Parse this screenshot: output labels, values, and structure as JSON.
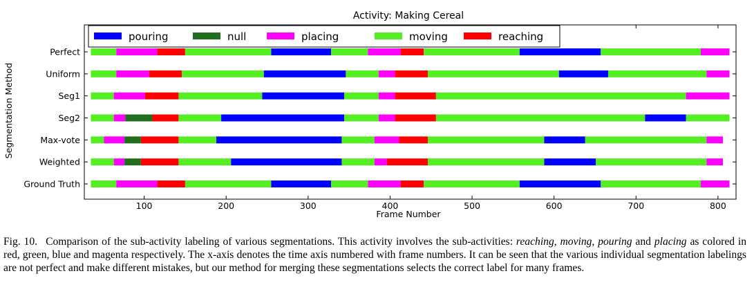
{
  "chart_data": {
    "type": "bar",
    "subtype": "horizontal-segment-timeline",
    "title": "Activity: Making Cereal",
    "xlabel": "Frame Number",
    "ylabel": "Segmentation Method",
    "xlim": [
      27,
      822
    ],
    "xticks": [
      100,
      200,
      300,
      400,
      500,
      600,
      700,
      800
    ],
    "legend_position": "top-left",
    "legend": [
      {
        "key": "pouring",
        "label": "pouring"
      },
      {
        "key": "null",
        "label": "null"
      },
      {
        "key": "placing",
        "label": "placing"
      },
      {
        "key": "moving",
        "label": "moving"
      },
      {
        "key": "reaching",
        "label": "reaching"
      }
    ],
    "colors": {
      "pouring": "#0000ff",
      "null": "#1e6e1e",
      "placing": "#ff00ff",
      "moving": "#55ee22",
      "reaching": "#ff0000"
    },
    "rows": [
      {
        "label": "Perfect",
        "segments": [
          [
            35,
            66,
            "moving"
          ],
          [
            66,
            116,
            "placing"
          ],
          [
            116,
            150,
            "reaching"
          ],
          [
            150,
            255,
            "moving"
          ],
          [
            255,
            328,
            "pouring"
          ],
          [
            328,
            373,
            "moving"
          ],
          [
            373,
            413,
            "placing"
          ],
          [
            413,
            441,
            "reaching"
          ],
          [
            441,
            558,
            "moving"
          ],
          [
            558,
            657,
            "pouring"
          ],
          [
            657,
            779,
            "moving"
          ],
          [
            779,
            814,
            "placing"
          ]
        ]
      },
      {
        "label": "Uniform",
        "segments": [
          [
            35,
            66,
            "moving"
          ],
          [
            66,
            106,
            "placing"
          ],
          [
            106,
            146,
            "reaching"
          ],
          [
            146,
            246,
            "moving"
          ],
          [
            246,
            346,
            "pouring"
          ],
          [
            346,
            386,
            "moving"
          ],
          [
            386,
            406,
            "placing"
          ],
          [
            406,
            446,
            "reaching"
          ],
          [
            446,
            606,
            "moving"
          ],
          [
            606,
            666,
            "pouring"
          ],
          [
            666,
            786,
            "moving"
          ],
          [
            786,
            814,
            "placing"
          ]
        ]
      },
      {
        "label": "Seg1",
        "segments": [
          [
            35,
            63,
            "moving"
          ],
          [
            63,
            101,
            "placing"
          ],
          [
            101,
            142,
            "reaching"
          ],
          [
            142,
            244,
            "moving"
          ],
          [
            244,
            344,
            "pouring"
          ],
          [
            344,
            386,
            "moving"
          ],
          [
            386,
            406,
            "placing"
          ],
          [
            406,
            456,
            "reaching"
          ],
          [
            456,
            761,
            "moving"
          ],
          [
            761,
            814,
            "placing"
          ]
        ]
      },
      {
        "label": "Seg2",
        "segments": [
          [
            35,
            63,
            "moving"
          ],
          [
            63,
            77,
            "placing"
          ],
          [
            77,
            110,
            "null"
          ],
          [
            110,
            142,
            "reaching"
          ],
          [
            142,
            194,
            "moving"
          ],
          [
            194,
            344,
            "pouring"
          ],
          [
            344,
            386,
            "moving"
          ],
          [
            386,
            406,
            "placing"
          ],
          [
            406,
            456,
            "reaching"
          ],
          [
            456,
            711,
            "moving"
          ],
          [
            711,
            761,
            "pouring"
          ],
          [
            761,
            814,
            "moving"
          ]
        ]
      },
      {
        "label": "Max-vote",
        "segments": [
          [
            35,
            51,
            "moving"
          ],
          [
            51,
            76,
            "placing"
          ],
          [
            76,
            96,
            "null"
          ],
          [
            96,
            142,
            "reaching"
          ],
          [
            142,
            188,
            "moving"
          ],
          [
            188,
            341,
            "pouring"
          ],
          [
            341,
            381,
            "moving"
          ],
          [
            381,
            411,
            "placing"
          ],
          [
            411,
            446,
            "reaching"
          ],
          [
            446,
            588,
            "moving"
          ],
          [
            588,
            638,
            "pouring"
          ],
          [
            638,
            786,
            "moving"
          ],
          [
            786,
            806,
            "placing"
          ]
        ]
      },
      {
        "label": "Weighted",
        "segments": [
          [
            35,
            63,
            "moving"
          ],
          [
            63,
            76,
            "placing"
          ],
          [
            76,
            96,
            "null"
          ],
          [
            96,
            142,
            "reaching"
          ],
          [
            142,
            206,
            "moving"
          ],
          [
            206,
            341,
            "pouring"
          ],
          [
            341,
            381,
            "moving"
          ],
          [
            381,
            396,
            "placing"
          ],
          [
            396,
            446,
            "reaching"
          ],
          [
            446,
            588,
            "moving"
          ],
          [
            588,
            651,
            "pouring"
          ],
          [
            651,
            786,
            "moving"
          ],
          [
            786,
            806,
            "placing"
          ]
        ]
      },
      {
        "label": "Ground Truth",
        "segments": [
          [
            35,
            66,
            "moving"
          ],
          [
            66,
            116,
            "placing"
          ],
          [
            116,
            150,
            "reaching"
          ],
          [
            150,
            255,
            "moving"
          ],
          [
            255,
            328,
            "pouring"
          ],
          [
            328,
            373,
            "moving"
          ],
          [
            373,
            413,
            "placing"
          ],
          [
            413,
            441,
            "reaching"
          ],
          [
            441,
            558,
            "moving"
          ],
          [
            558,
            657,
            "pouring"
          ],
          [
            657,
            779,
            "moving"
          ],
          [
            779,
            814,
            "placing"
          ]
        ]
      }
    ]
  },
  "caption": {
    "label": "Fig. 10.",
    "text_1": "Comparison of the sub-activity labeling of various segmentations. This activity involves the sub-activities: ",
    "em_1": "reaching",
    "sep_1": ", ",
    "em_2": "moving",
    "sep_2": ", ",
    "em_3": "pouring",
    "sep_3": " and ",
    "em_4": "placing",
    "text_2": " as colored in red, green, blue and magenta respectively. The x-axis denotes the time axis numbered with frame numbers. It can be seen that the various individual segmentation labelings are not perfect and make different mistakes, but our method for merging these segmentations selects the correct label for many frames."
  }
}
